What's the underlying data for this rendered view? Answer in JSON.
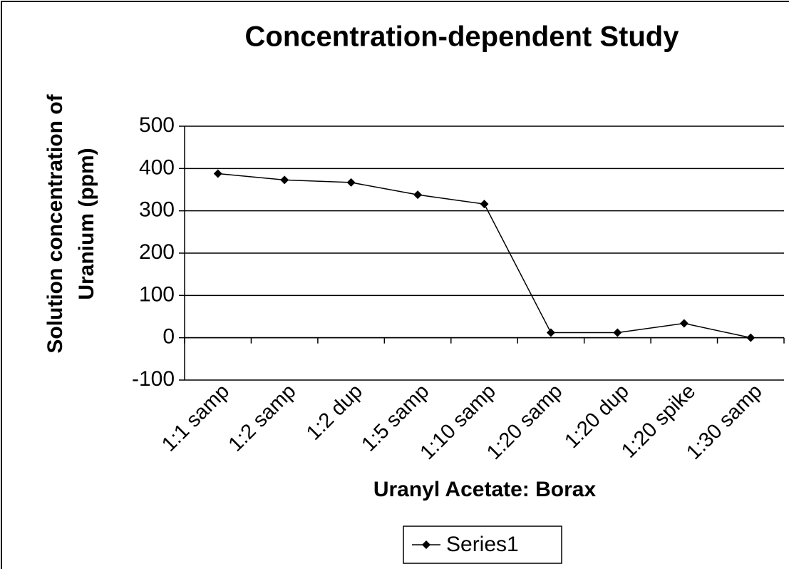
{
  "chart_data": {
    "type": "line",
    "title": "Concentration-dependent Study",
    "x_label": "Uranyl Acetate: Borax",
    "y_label": "Solution concentration of Uranium (ppm)",
    "categories": [
      "1:1 samp",
      "1:2 samp",
      "1:2 dup",
      "1:5 samp",
      "1:10 samp",
      "1:20 samp",
      "1:20 dup",
      "1:20 spike",
      "1:30 samp"
    ],
    "series": [
      {
        "name": "Series1",
        "color": "#000000",
        "values": [
          388,
          373,
          367,
          338,
          316,
          12,
          12,
          34,
          0
        ]
      }
    ],
    "ylim": [
      -100,
      500
    ],
    "yticks": [
      -100,
      0,
      100,
      200,
      300,
      400,
      500
    ],
    "grid": true,
    "legend": "bottom"
  }
}
